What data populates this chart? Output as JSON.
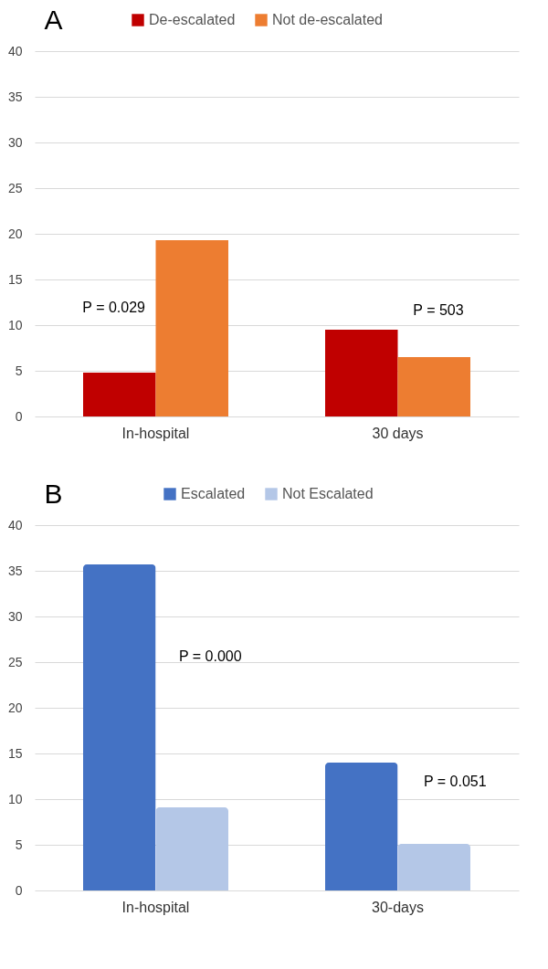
{
  "chart_data": [
    {
      "type": "bar",
      "title": "A",
      "categories": [
        "In-hospital",
        "30 days"
      ],
      "series": [
        {
          "name": "De-escalated",
          "color": "#c00000",
          "values": [
            4.8,
            9.5
          ]
        },
        {
          "name": "Not de-escalated",
          "color": "#ed7d31",
          "values": [
            19.3,
            6.5
          ]
        }
      ],
      "ylim": [
        0,
        40
      ],
      "yticks": [
        0,
        5,
        10,
        15,
        20,
        25,
        30,
        35,
        40
      ],
      "grid": "y",
      "legend": "top",
      "annotations": [
        "P = 0.029",
        "P = 503"
      ]
    },
    {
      "type": "bar",
      "title": "B",
      "categories": [
        "In-hospital",
        "30-days"
      ],
      "series": [
        {
          "name": "Escalated",
          "color": "#4472c4",
          "values": [
            35.7,
            14.0
          ]
        },
        {
          "name": "Not Escalated",
          "color": "#b4c7e7",
          "values": [
            9.1,
            5.1
          ]
        }
      ],
      "ylim": [
        0,
        40
      ],
      "yticks": [
        0,
        5,
        10,
        15,
        20,
        25,
        30,
        35,
        40
      ],
      "grid": "y",
      "legend": "top",
      "annotations": [
        "P = 0.000",
        "P = 0.051"
      ]
    }
  ]
}
